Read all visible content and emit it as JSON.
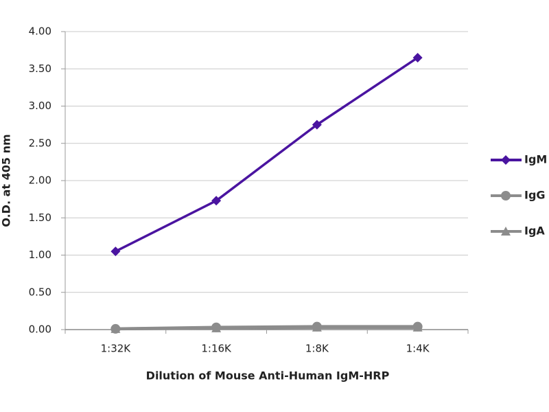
{
  "chart_data": {
    "type": "line",
    "x_label": "Dilution of Mouse Anti-Human IgM-HRP",
    "y_label": "O.D. at 405 nm",
    "categories": [
      "1:32K",
      "1:16K",
      "1:8K",
      "1:4K"
    ],
    "series": [
      {
        "name": "IgM",
        "color": "#4a14a0",
        "marker": "diamond",
        "values": [
          1.05,
          1.73,
          2.75,
          3.65
        ]
      },
      {
        "name": "IgG",
        "color": "#8c8c8c",
        "marker": "circle",
        "values": [
          0.01,
          0.03,
          0.04,
          0.04
        ]
      },
      {
        "name": "IgA",
        "color": "#8c8c8c",
        "marker": "triangle",
        "values": [
          0.01,
          0.02,
          0.03,
          0.03
        ]
      }
    ],
    "ylim": [
      0,
      4
    ],
    "yticks": [
      {
        "value": 0,
        "label": "0.00"
      },
      {
        "value": 0.5,
        "label": "0.50"
      },
      {
        "value": 1,
        "label": "1.00"
      },
      {
        "value": 1.5,
        "label": "1.50"
      },
      {
        "value": 2,
        "label": "2.00"
      },
      {
        "value": 2.5,
        "label": "2.50"
      },
      {
        "value": 3,
        "label": "3.00"
      },
      {
        "value": 3.5,
        "label": "3.50"
      },
      {
        "value": 4,
        "label": "4.00"
      }
    ],
    "grid": true,
    "legend": "right"
  }
}
